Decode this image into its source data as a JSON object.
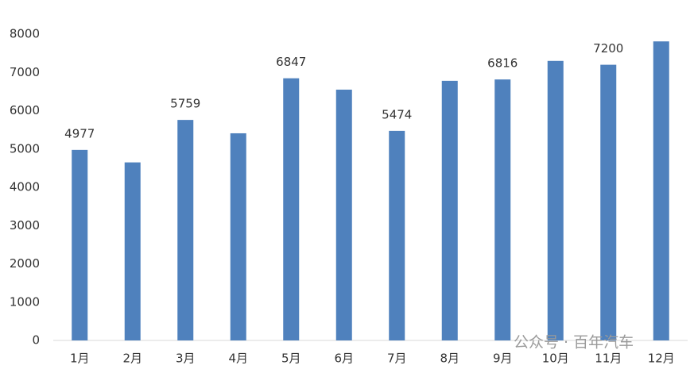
{
  "chart_data": {
    "type": "bar",
    "categories": [
      "1月",
      "2月",
      "3月",
      "4月",
      "5月",
      "6月",
      "7月",
      "8月",
      "9月",
      "10月",
      "11月",
      "12月"
    ],
    "values": [
      4977,
      4650,
      5759,
      5410,
      6847,
      6550,
      5474,
      6780,
      6816,
      7300,
      7200,
      7810
    ],
    "value_labels": [
      "4977",
      null,
      "5759",
      null,
      "6847",
      null,
      "5474",
      null,
      "6816",
      null,
      "7200",
      null
    ],
    "color": "#4f81bd",
    "ylim": [
      0,
      8000
    ],
    "yticks": [
      0,
      1000,
      2000,
      3000,
      4000,
      5000,
      6000,
      7000,
      8000
    ],
    "grid": false,
    "watermark": "公众号 · 百年汽车"
  }
}
